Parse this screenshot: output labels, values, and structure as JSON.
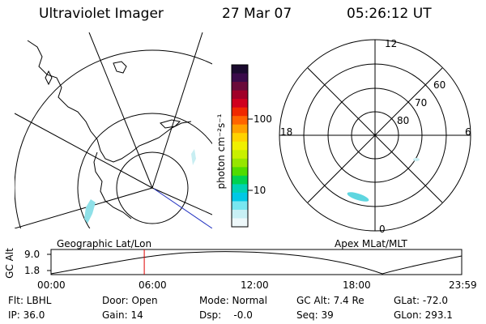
{
  "header": {
    "title": "Ultraviolet Imager",
    "date": "27 Mar 07",
    "time": "05:26:12 UT"
  },
  "colorbar": {
    "unit_label": "photon cm⁻²s⁻¹",
    "ticks": [
      "100",
      "10"
    ],
    "colors": [
      "#1a0a2e",
      "#3a0a4a",
      "#6a0a3a",
      "#a00028",
      "#d0001e",
      "#f02800",
      "#ff6400",
      "#ffa000",
      "#ffd200",
      "#f0f000",
      "#c8f000",
      "#96e600",
      "#50dc00",
      "#00d250",
      "#00d2b4",
      "#00c8e6",
      "#78e6f0",
      "#c8f0f5",
      "#eef8fa"
    ]
  },
  "left_map": {
    "label": "Geographic Lat/Lon"
  },
  "right_map": {
    "label": "Apex MLat/MLT",
    "mlt_labels": {
      "top": "12",
      "left": "18",
      "right": "6",
      "bottom": "0"
    },
    "lat_labels": [
      "60",
      "70",
      "80"
    ]
  },
  "altitude_plot": {
    "y_axis_label": "GC Alt",
    "y_ticks": [
      "9.0",
      "1.8"
    ],
    "x_ticks": [
      "00:00",
      "06:00",
      "12:00",
      "18:00",
      "23:59"
    ],
    "current_time_fraction": 0.227,
    "marker_color": "#e00000"
  },
  "info": {
    "flt": "Flt: LBHL",
    "door": "Door: Open",
    "mode": "Mode: Normal",
    "gc_alt": "GC Alt: 7.4 Re",
    "glat": "GLat: -72.0",
    "ip": "IP: 36.0",
    "gain": "Gain: 14",
    "dsp": "Dsp:    -0.0",
    "seq": "Seq: 39",
    "glon": "GLon: 293.1"
  }
}
